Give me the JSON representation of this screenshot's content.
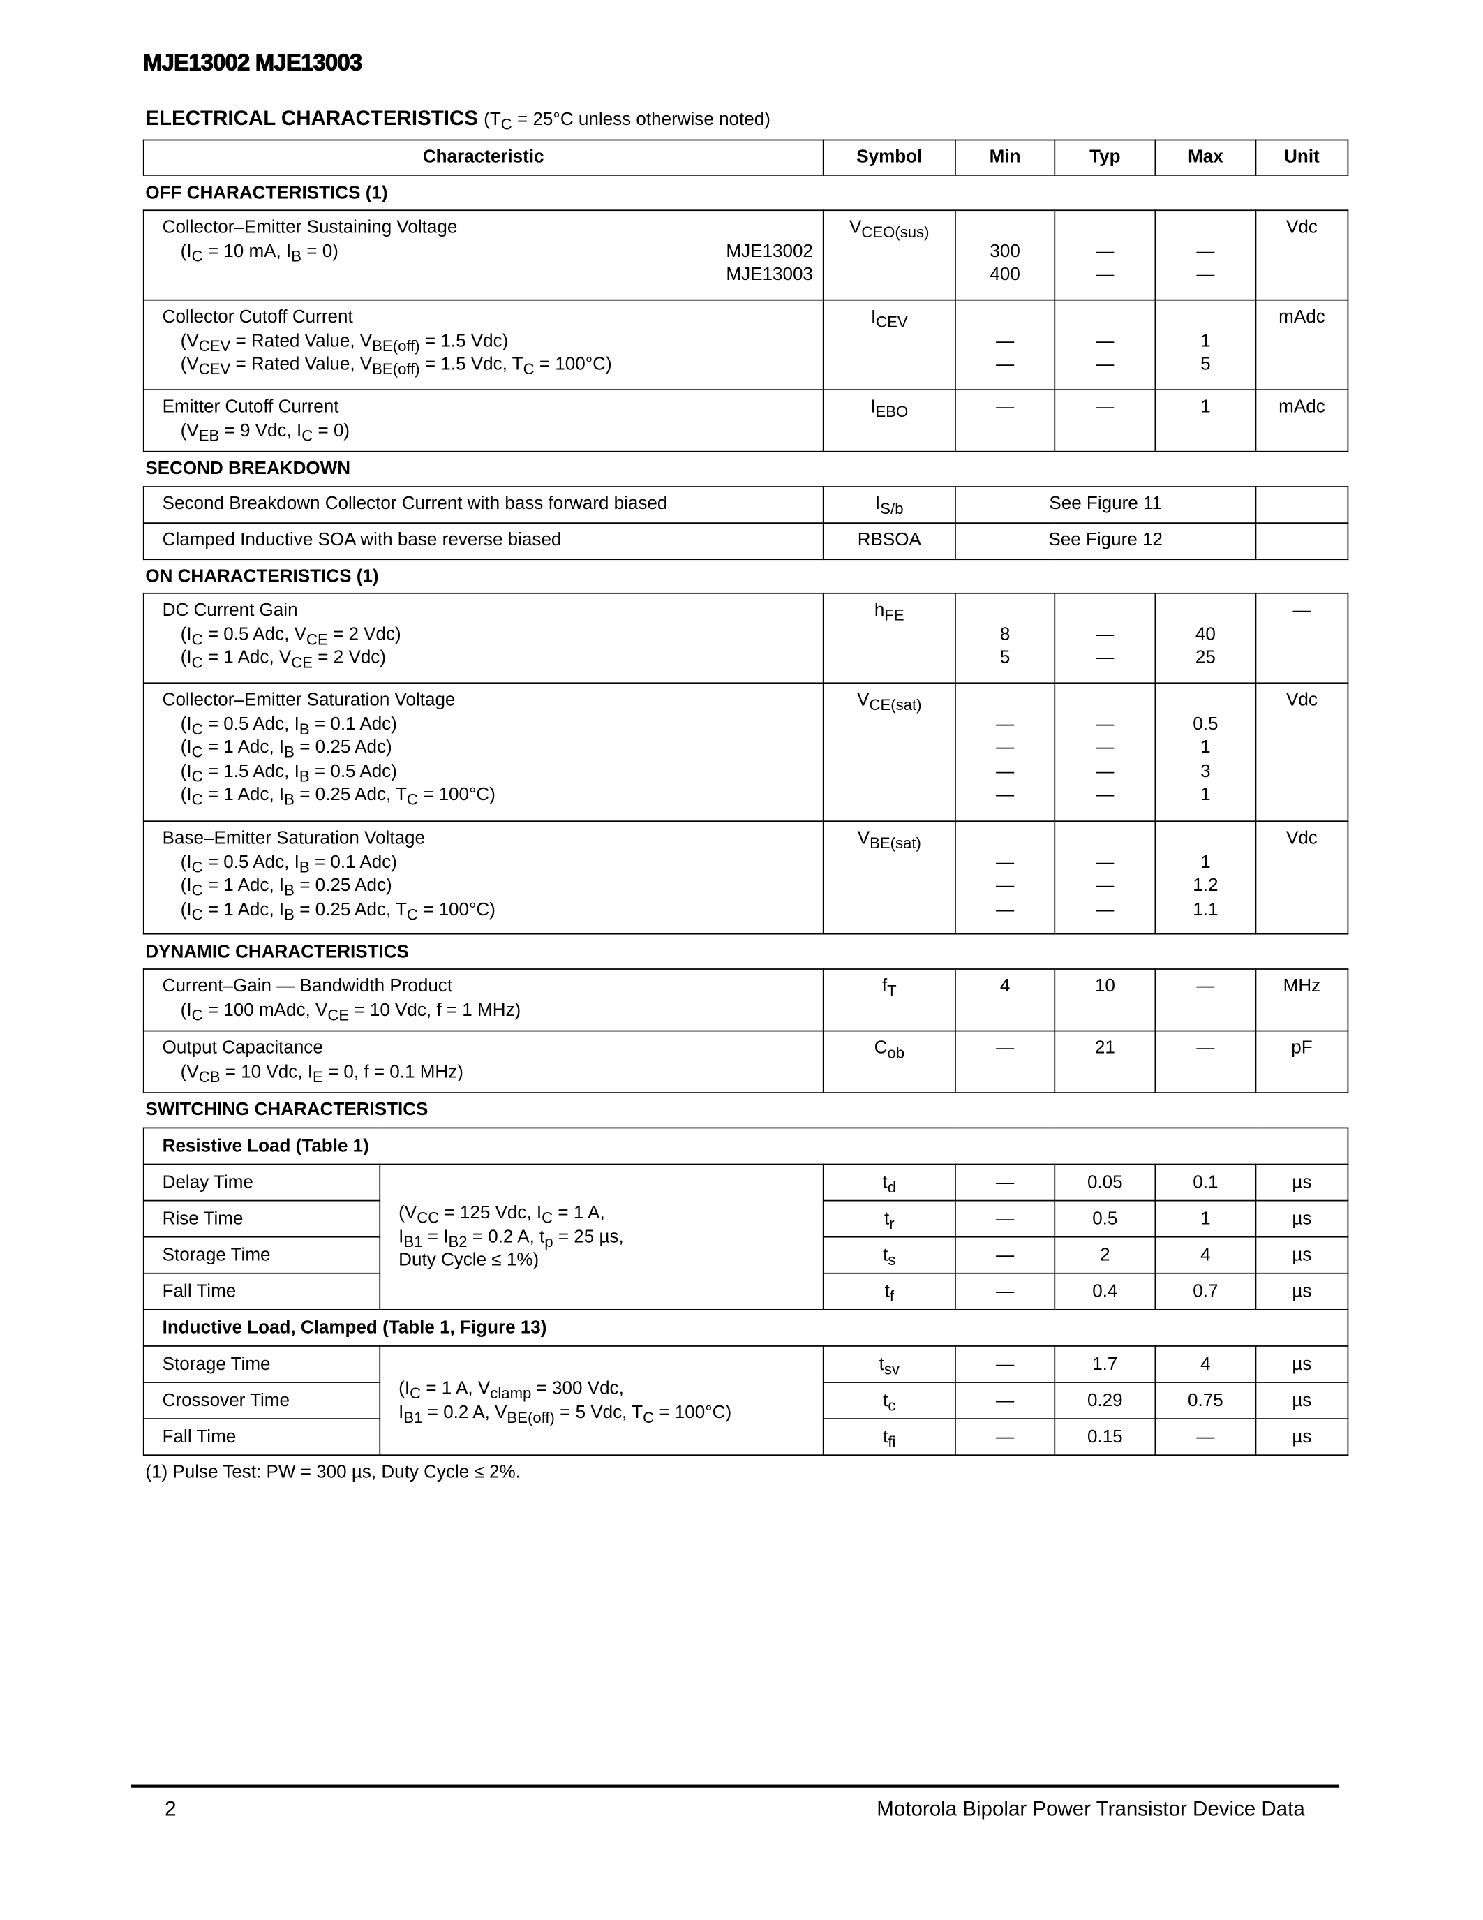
{
  "doc_title": "MJE13002 MJE13003",
  "heading": {
    "bold": "ELECTRICAL CHARACTERISTICS",
    "note": "(T<sub>C</sub> = 25°C unless otherwise noted)"
  },
  "columns": [
    "Characteristic",
    "Symbol",
    "Min",
    "Typ",
    "Max",
    "Unit"
  ],
  "sections": [
    {
      "title": "OFF CHARACTERISTICS (1)",
      "rows": [
        {
          "char": [
            "Collector–Emitter Sustaining Voltage",
            "(I<sub>C</sub> = 10 mA, I<sub>B</sub> = 0)",
            ""
          ],
          "right": [
            "",
            "MJE13002",
            "MJE13003"
          ],
          "symbol": "V<sub>CEO(sus)</sub>",
          "min": [
            "",
            "300",
            "400"
          ],
          "typ": [
            "",
            "—",
            "—"
          ],
          "max": [
            "",
            "—",
            "—"
          ],
          "unit": "Vdc"
        },
        {
          "char": [
            "Collector Cutoff Current",
            "(V<sub>CEV</sub> = Rated Value, V<sub>BE(off)</sub> = 1.5 Vdc)",
            "(V<sub>CEV</sub> = Rated Value, V<sub>BE(off)</sub> = 1.5 Vdc, T<sub>C</sub> = 100°C)"
          ],
          "symbol": "I<sub>CEV</sub>",
          "min": [
            "",
            "—",
            "—"
          ],
          "typ": [
            "",
            "—",
            "—"
          ],
          "max": [
            "",
            "1",
            "5"
          ],
          "unit": "mAdc"
        },
        {
          "char": [
            "Emitter Cutoff Current",
            "(V<sub>EB</sub> = 9 Vdc, I<sub>C</sub> = 0)"
          ],
          "symbol": "I<sub>EBO</sub>",
          "min": [
            "—"
          ],
          "typ": [
            "—"
          ],
          "max": [
            "1"
          ],
          "unit": "mAdc"
        }
      ]
    },
    {
      "title": "SECOND BREAKDOWN",
      "rows": [
        {
          "char": [
            "Second Breakdown Collector Current with bass forward biased"
          ],
          "symbol": "I<sub>S/b</sub>",
          "span": "See Figure 11",
          "unit": ""
        },
        {
          "char": [
            "Clamped Inductive SOA with base reverse biased"
          ],
          "symbol": "RBSOA",
          "span": "See Figure 12",
          "unit": ""
        }
      ]
    },
    {
      "title": "ON CHARACTERISTICS (1)",
      "rows": [
        {
          "char": [
            "DC Current Gain",
            "(I<sub>C</sub> = 0.5 Adc, V<sub>CE</sub> = 2 Vdc)",
            "(I<sub>C</sub> = 1 Adc, V<sub>CE</sub> = 2 Vdc)"
          ],
          "symbol": "h<sub>FE</sub>",
          "min": [
            "",
            "8",
            "5"
          ],
          "typ": [
            "",
            "—",
            "—"
          ],
          "max": [
            "",
            "40",
            "25"
          ],
          "unit": "—"
        },
        {
          "char": [
            "Collector–Emitter Saturation Voltage",
            "(I<sub>C</sub> = 0.5 Adc, I<sub>B</sub> = 0.1 Adc)",
            "(I<sub>C</sub> = 1 Adc, I<sub>B</sub> = 0.25 Adc)",
            "(I<sub>C</sub> = 1.5 Adc, I<sub>B</sub> = 0.5 Adc)",
            "(I<sub>C</sub> = 1 Adc, I<sub>B</sub> = 0.25 Adc, T<sub>C</sub> = 100°C)"
          ],
          "symbol": "V<sub>CE(sat)</sub>",
          "min": [
            "",
            "—",
            "—",
            "—",
            "—"
          ],
          "typ": [
            "",
            "—",
            "—",
            "—",
            "—"
          ],
          "max": [
            "",
            "0.5",
            "1",
            "3",
            "1"
          ],
          "unit": "Vdc"
        },
        {
          "char": [
            "Base–Emitter Saturation Voltage",
            "(I<sub>C</sub> = 0.5 Adc, I<sub>B</sub> = 0.1 Adc)",
            "(I<sub>C</sub> = 1 Adc, I<sub>B</sub> = 0.25 Adc)",
            "(I<sub>C</sub> = 1 Adc, I<sub>B</sub> = 0.25 Adc, T<sub>C</sub> = 100°C)"
          ],
          "symbol": "V<sub>BE(sat)</sub>",
          "min": [
            "",
            "—",
            "—",
            "—"
          ],
          "typ": [
            "",
            "—",
            "—",
            "—"
          ],
          "max": [
            "",
            "1",
            "1.2",
            "1.1"
          ],
          "unit": "Vdc"
        }
      ]
    },
    {
      "title": "DYNAMIC CHARACTERISTICS",
      "rows": [
        {
          "char": [
            "Current–Gain — Bandwidth Product",
            "(I<sub>C</sub> = 100 mAdc, V<sub>CE</sub> = 10 Vdc, f = 1 MHz)"
          ],
          "symbol": "f<sub>T</sub>",
          "min": [
            "4"
          ],
          "typ": [
            "10"
          ],
          "max": [
            "—"
          ],
          "unit": "MHz"
        },
        {
          "char": [
            "Output Capacitance",
            "(V<sub>CB</sub> = 10 Vdc, I<sub>E</sub> = 0, f = 0.1 MHz)"
          ],
          "symbol": "C<sub>ob</sub>",
          "min": [
            "—"
          ],
          "typ": [
            "21"
          ],
          "max": [
            "—"
          ],
          "unit": "pF"
        }
      ]
    }
  ],
  "switching": {
    "title": "SWITCHING CHARACTERISTICS",
    "groups": [
      {
        "header": "Resistive Load (Table 1)",
        "condition": [
          "(V<sub>CC</sub> = 125 Vdc, I<sub>C</sub> = 1 A,",
          "I<sub>B1</sub> = I<sub>B2</sub> = 0.2 A, t<sub>p</sub> = 25 µs,",
          "Duty Cycle ≤ 1%)"
        ],
        "rows": [
          {
            "label": "Delay Time",
            "symbol": "t<sub>d</sub>",
            "min": "—",
            "typ": "0.05",
            "max": "0.1",
            "unit": "µs"
          },
          {
            "label": "Rise Time",
            "symbol": "t<sub>r</sub>",
            "min": "—",
            "typ": "0.5",
            "max": "1",
            "unit": "µs"
          },
          {
            "label": "Storage Time",
            "symbol": "t<sub>s</sub>",
            "min": "—",
            "typ": "2",
            "max": "4",
            "unit": "µs"
          },
          {
            "label": "Fall Time",
            "symbol": "t<sub>f</sub>",
            "min": "—",
            "typ": "0.4",
            "max": "0.7",
            "unit": "µs"
          }
        ]
      },
      {
        "header": "Inductive Load, Clamped (Table 1, Figure 13)",
        "condition": [
          "(I<sub>C</sub> = 1 A, V<sub>clamp</sub> = 300 Vdc,",
          "I<sub>B1</sub> = 0.2 A, V<sub>BE(off)</sub> = 5 Vdc, T<sub>C</sub> = 100°C)"
        ],
        "rows": [
          {
            "label": "Storage Time",
            "symbol": "t<sub>sv</sub>",
            "min": "—",
            "typ": "1.7",
            "max": "4",
            "unit": "µs"
          },
          {
            "label": "Crossover Time",
            "symbol": "t<sub>c</sub>",
            "min": "—",
            "typ": "0.29",
            "max": "0.75",
            "unit": "µs"
          },
          {
            "label": "Fall Time",
            "symbol": "t<sub>fi</sub>",
            "min": "—",
            "typ": "0.15",
            "max": "—",
            "unit": "µs"
          }
        ]
      }
    ]
  },
  "footnote": "(1)  Pulse Test: PW = 300 µs, Duty Cycle ≤ 2%.",
  "footer": {
    "page_number": "2",
    "text": "Motorola Bipolar Power Transistor Device Data"
  }
}
